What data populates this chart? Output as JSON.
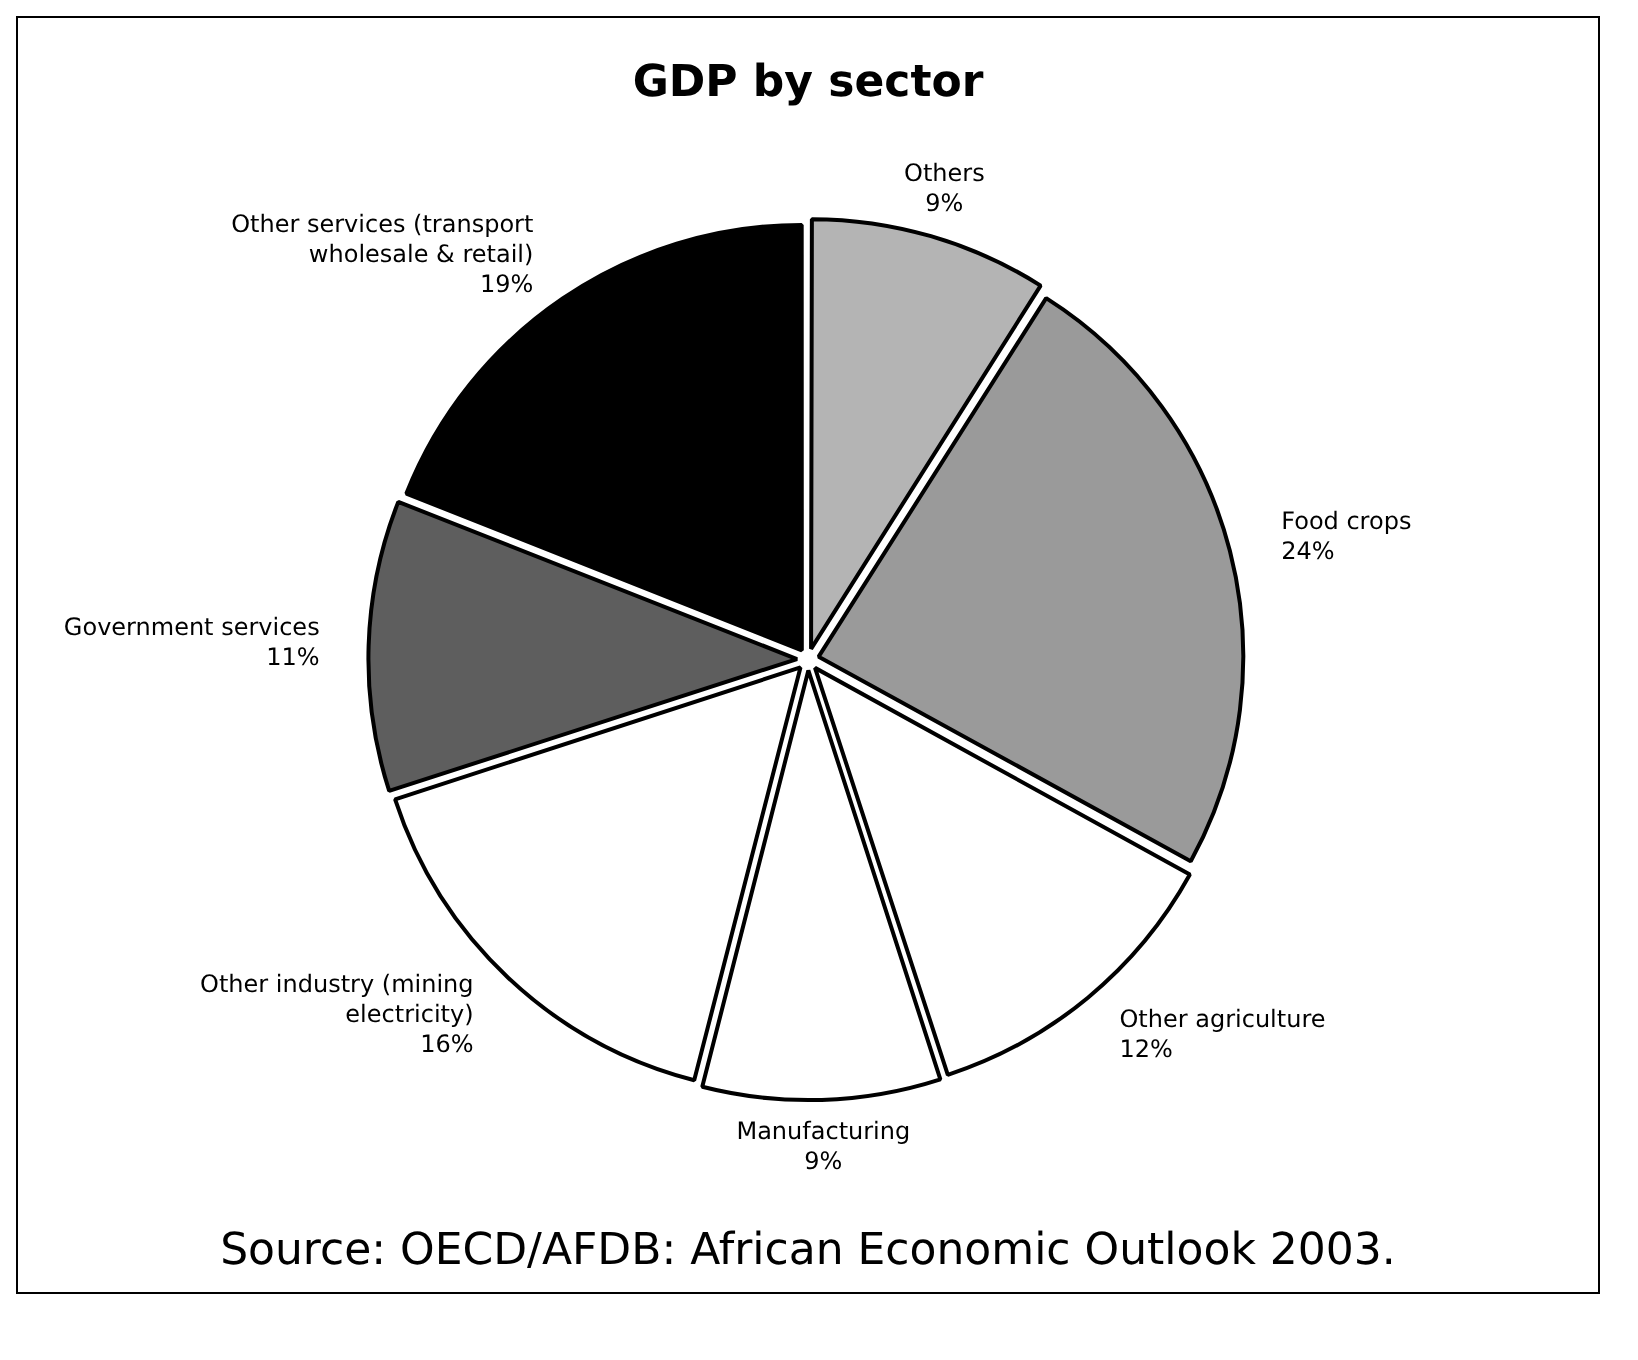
{
  "chart_data": {
    "type": "pie",
    "title": "GDP by sector",
    "categories": [
      "Others",
      "Food crops",
      "Other agriculture",
      "Manufacturing",
      "Other industry (mining electricity)",
      "Government services",
      "Other services (transport wholesale & retail)"
    ],
    "values": [
      9,
      24,
      12,
      9,
      16,
      11,
      19
    ],
    "value_labels": [
      "9%",
      "24%",
      "12%",
      "9%",
      "16%",
      "11%",
      "19%"
    ],
    "colors": [
      "#b4b4b4",
      "#9a9a9a",
      "#ffffff",
      "#ffffff",
      "#ffffff",
      "#5e5e5e",
      "#000000"
    ],
    "legend": false,
    "annotations": [
      "Source: OECD/AFDB: African Economic Outlook 2003."
    ]
  }
}
